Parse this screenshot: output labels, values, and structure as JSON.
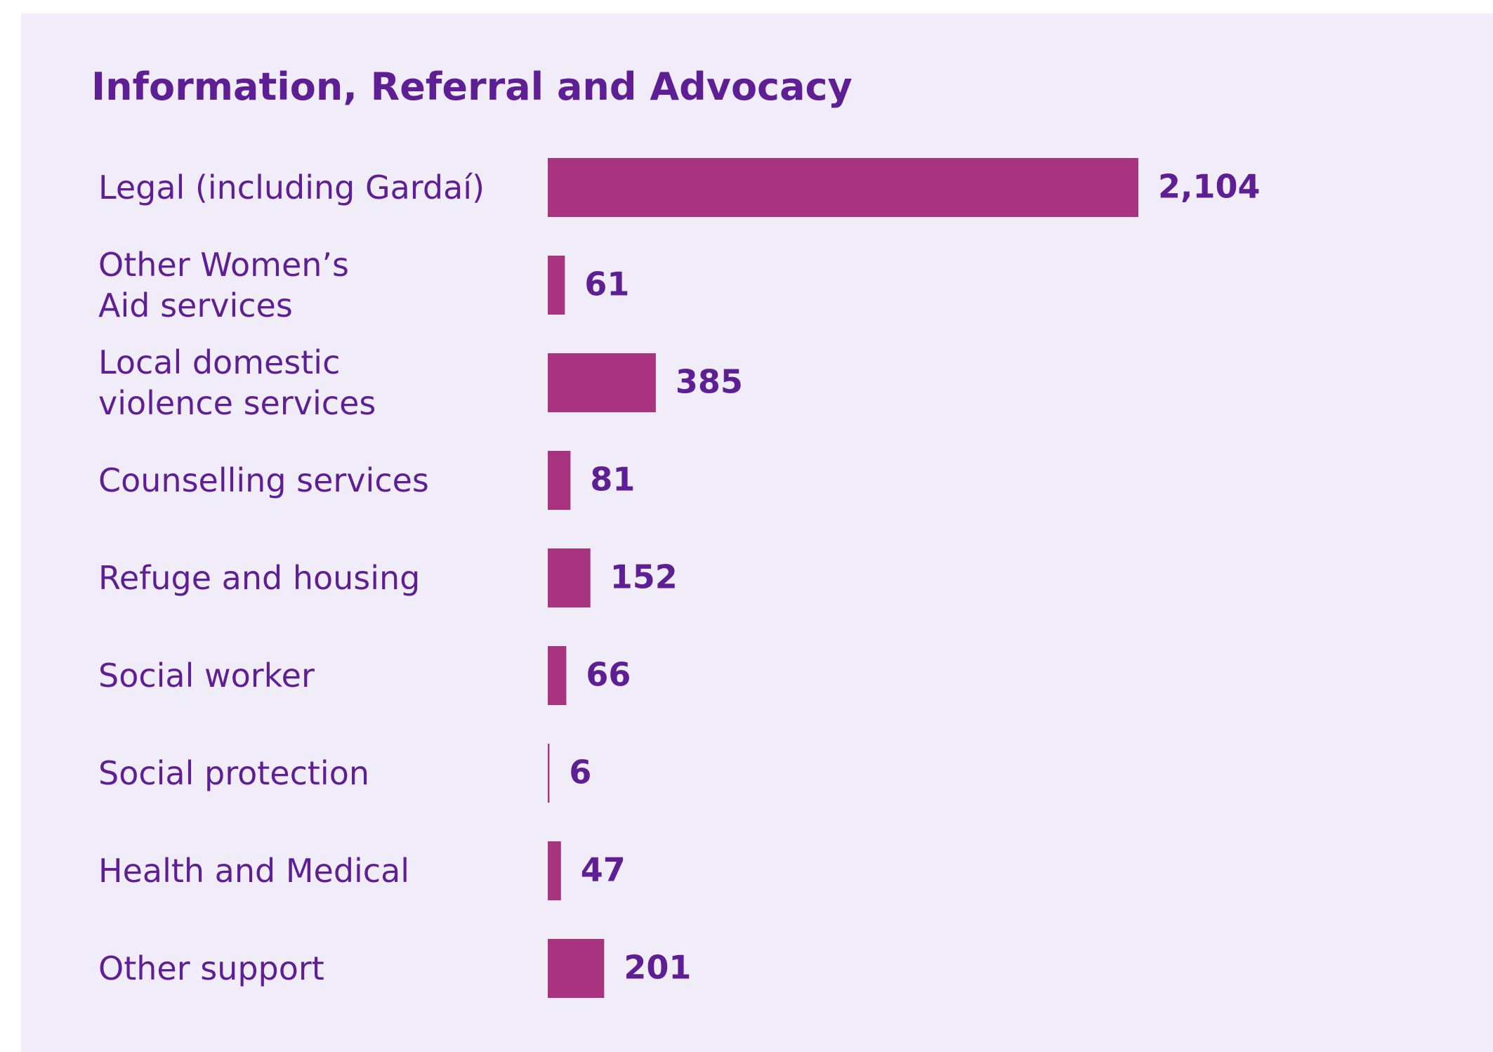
{
  "chart_data": {
    "type": "hbar",
    "title": "Information, Referral and Advocacy",
    "categories": [
      "Legal (including Gardaí)",
      "Other Women’s Aid services",
      "Local domestic violence services",
      "Counselling services",
      "Refuge and housing",
      "Social worker",
      "Social protection",
      "Health and Medical",
      "Other support"
    ],
    "values": [
      2104,
      61,
      385,
      81,
      152,
      66,
      6,
      47,
      201
    ],
    "value_labels": [
      "2,104",
      "61",
      "385",
      "81",
      "152",
      "66",
      "6",
      "47",
      "201"
    ],
    "color": "#a8347f"
  }
}
